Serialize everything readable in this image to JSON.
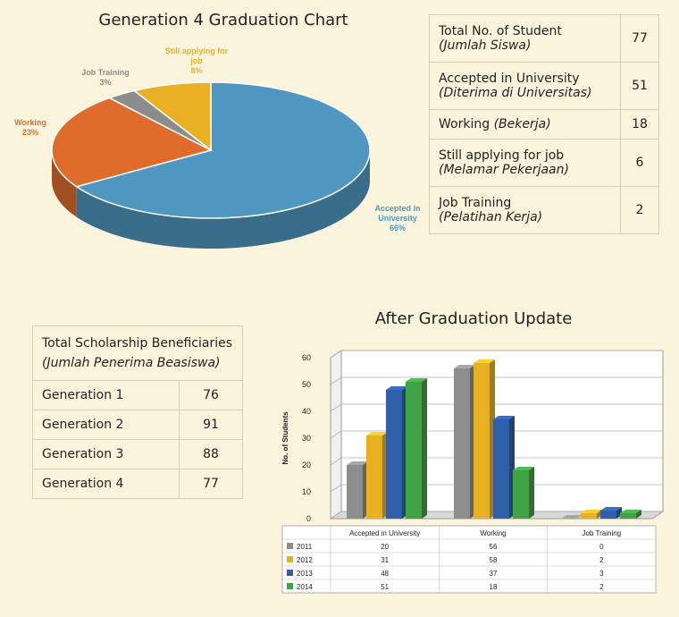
{
  "pie": {
    "title": "Generation 4 Graduation Chart",
    "labels": [
      {
        "name": "Accepted in University",
        "line1": "Accepted in",
        "line2": "University",
        "pct": "66%",
        "color": "#4f97c0"
      },
      {
        "name": "Working",
        "line1": "Working",
        "line2": "",
        "pct": "23%",
        "color": "#e06c2c"
      },
      {
        "name": "Job Training",
        "line1": "Job Training",
        "line2": "",
        "pct": "3%",
        "color": "#8c8c8c"
      },
      {
        "name": "Still applying for job",
        "line1": "Still applying for",
        "line2": "job",
        "pct": "8%",
        "color": "#e8b022"
      }
    ]
  },
  "summary_table": {
    "rows": [
      {
        "label": "Total No. of Student",
        "sub": "(Jumlah Siswa)",
        "value": "77"
      },
      {
        "label": "Accepted in University",
        "sub": "(Diterima di Universitas)",
        "value": "51"
      },
      {
        "label": "Working",
        "sub": "(Bekerja)",
        "value": "18"
      },
      {
        "label": "Still applying for job",
        "sub": "(Melamar Pekerjaan)",
        "value": "6"
      },
      {
        "label": "Job Training",
        "sub": "(Pelatihan Kerja)",
        "value": "2"
      }
    ]
  },
  "scholarship_table": {
    "header": "Total Scholarship Beneficiaries",
    "header_sub": "(Jumlah Penerima Beasiswa)",
    "rows": [
      {
        "label": "Generation 1",
        "value": "76"
      },
      {
        "label": "Generation 2",
        "value": "91"
      },
      {
        "label": "Generation 3",
        "value": "88"
      },
      {
        "label": "Generation 4",
        "value": "77"
      }
    ]
  },
  "chart_data": [
    {
      "type": "pie",
      "title": "Generation 4 Graduation Chart",
      "categories": [
        "Accepted in University",
        "Working",
        "Job Training",
        "Still applying for job"
      ],
      "values": [
        66,
        23,
        3,
        8
      ],
      "colors": [
        "#4f97c0",
        "#e06c2c",
        "#8c8c8c",
        "#e8b022"
      ]
    },
    {
      "type": "bar",
      "title": "After Graduation Update",
      "ylabel": "No. of Students",
      "xlabel": "",
      "ylim": [
        0,
        60
      ],
      "yticks": [
        0,
        10,
        20,
        30,
        40,
        50,
        60
      ],
      "categories": [
        "Accepted in University",
        "Working",
        "Job Training"
      ],
      "series": [
        {
          "name": "2011",
          "values": [
            20,
            56,
            0
          ],
          "color": "#8e8e8e"
        },
        {
          "name": "2012",
          "values": [
            31,
            58,
            2
          ],
          "color": "#e8b022"
        },
        {
          "name": "2013",
          "values": [
            48,
            37,
            3
          ],
          "color": "#2e5fa8"
        },
        {
          "name": "2014",
          "values": [
            51,
            18,
            2
          ],
          "color": "#3fa244"
        }
      ],
      "legend": "data-table-below"
    }
  ]
}
